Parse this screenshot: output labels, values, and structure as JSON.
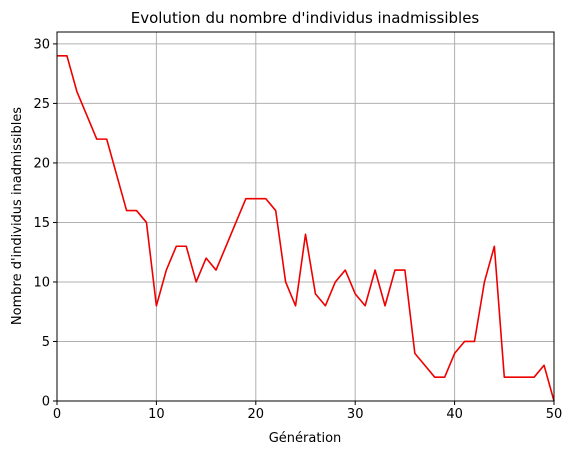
{
  "chart_data": {
    "type": "line",
    "title": "Evolution du nombre d'individus inadmissibles",
    "xlabel": "Génération",
    "ylabel": "Nombre d'individus inadmissibles",
    "xlim": [
      0,
      50
    ],
    "ylim": [
      0,
      31
    ],
    "xticks": [
      0,
      10,
      20,
      30,
      40,
      50
    ],
    "yticks": [
      0,
      5,
      10,
      15,
      20,
      25,
      30
    ],
    "grid": true,
    "series": [
      {
        "color": "#ee0000",
        "x": [
          0,
          1,
          2,
          3,
          4,
          5,
          6,
          7,
          8,
          9,
          10,
          11,
          12,
          13,
          14,
          15,
          16,
          17,
          18,
          19,
          20,
          21,
          22,
          23,
          24,
          25,
          26,
          27,
          28,
          29,
          30,
          31,
          32,
          33,
          34,
          35,
          36,
          37,
          38,
          39,
          40,
          41,
          42,
          43,
          44,
          45,
          46,
          47,
          48,
          49,
          50
        ],
        "y": [
          29,
          29,
          26,
          24,
          22,
          22,
          19,
          16,
          16,
          15,
          8,
          11,
          13,
          13,
          10,
          12,
          11,
          13,
          15,
          17,
          17,
          17,
          16,
          10,
          8,
          14,
          9,
          8,
          10,
          11,
          9,
          8,
          11,
          8,
          11,
          11,
          4,
          3,
          2,
          2,
          4,
          5,
          5,
          10,
          13,
          2,
          2,
          2,
          2,
          3,
          0
        ]
      }
    ]
  }
}
